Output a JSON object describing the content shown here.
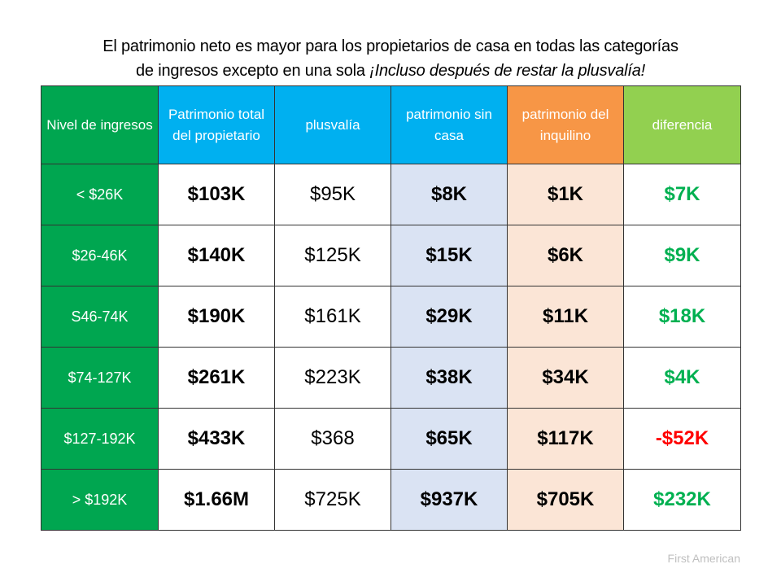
{
  "title": {
    "line1": "El patrimonio neto es mayor para los propietarios de casa en todas las categorías",
    "line2_plain": "de ingresos excepto en una sola ",
    "line2_italic": "¡Incluso después de restar la plusvalía!"
  },
  "colors": {
    "income_header": "#00A650",
    "owner_header": "#00B0F0",
    "renter_header": "#F79646",
    "difference_header": "#92D050",
    "positive_text": "#00B050",
    "negative_text": "#FF0000"
  },
  "table": {
    "headers": [
      "Nivel de ingresos",
      "Patrimonio total del propietario",
      "plusvalía",
      "patrimonio sin casa",
      "patrimonio del inquilino",
      "diferencia"
    ],
    "rows": [
      {
        "income": "< $26K",
        "owner_total": "$103K",
        "equity": "$95K",
        "without_home": "$8K",
        "renter": "$1K",
        "difference": "$7K"
      },
      {
        "income": "$26-46K",
        "owner_total": "$140K",
        "equity": "$125K",
        "without_home": "$15K",
        "renter": "$6K",
        "difference": "$9K"
      },
      {
        "income": "S46-74K",
        "owner_total": "$190K",
        "equity": "$161K",
        "without_home": "$29K",
        "renter": "$11K",
        "difference": "$18K"
      },
      {
        "income": "$74-127K",
        "owner_total": "$261K",
        "equity": "$223K",
        "without_home": "$38K",
        "renter": "$34K",
        "difference": "$4K"
      },
      {
        "income": "$127-192K",
        "owner_total": "$433K",
        "equity": "$368",
        "without_home": "$65K",
        "renter": "$117K",
        "difference": "-$52K"
      },
      {
        "income": "> $192K",
        "owner_total": "$1.66M",
        "equity": "$725K",
        "without_home": "$937K",
        "renter": "$705K",
        "difference": "$232K"
      }
    ]
  },
  "source": "First American"
}
